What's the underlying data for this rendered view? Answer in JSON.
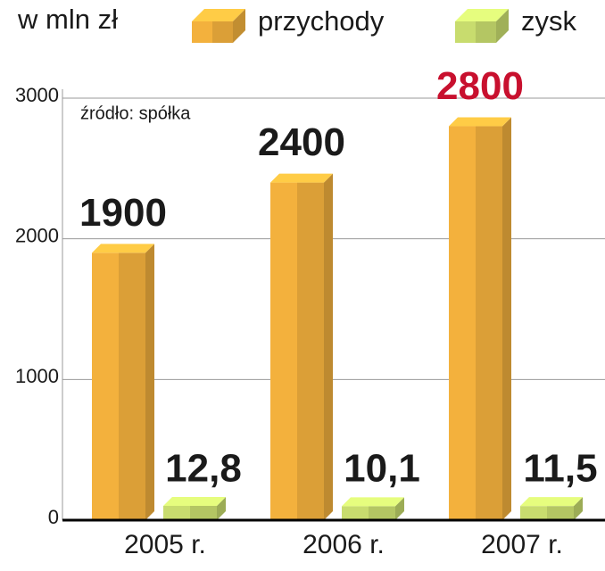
{
  "chart_data": {
    "type": "bar3d",
    "unit_label": "w mln zł",
    "note": "źródło: spółka",
    "categories": [
      "2005 r.",
      "2006 r.",
      "2007 r."
    ],
    "series": [
      {
        "name": "przychody",
        "color": "#f3b13d",
        "values": [
          1900,
          2400,
          2800
        ],
        "label_colors": [
          "#1a1a1a",
          "#1a1a1a",
          "#c8102e"
        ]
      },
      {
        "name": "zysk",
        "color": "#c8dc6e",
        "values": [
          12.8,
          10.1,
          11.5
        ],
        "value_labels": [
          "12,8",
          "10,1",
          "11,5"
        ],
        "label_colors": [
          "#1a1a1a",
          "#1a1a1a",
          "#1a1a1a"
        ]
      }
    ],
    "ylim": [
      0,
      3000
    ],
    "yticks": [
      0,
      1000,
      2000,
      3000
    ],
    "grid": true
  }
}
